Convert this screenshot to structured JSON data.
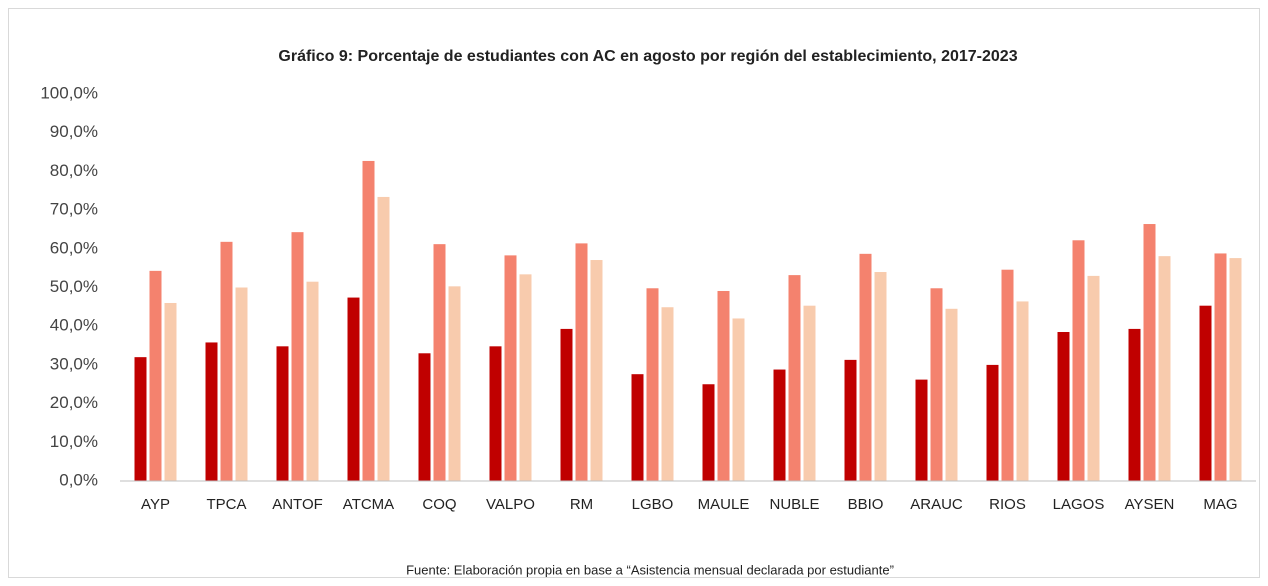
{
  "chart_data": {
    "type": "bar",
    "title": "Gráfico 9: Porcentaje de estudiantes con AC en agosto por región del establecimiento, 2017-2023",
    "source": "Fuente: Elaboración propia en base a “Asistencia mensual declarada por estudiante”",
    "categories": [
      "AYP",
      "TPCA",
      "ANTOF",
      "ATCMA",
      "COQ",
      "VALPO",
      "RM",
      "LGBO",
      "MAULE",
      "NUBLE",
      "BBIO",
      "ARAUC",
      "RIOS",
      "LAGOS",
      "AYSEN",
      "MAG"
    ],
    "series": [
      {
        "color": "#c00000",
        "values": [
          32.0,
          35.8,
          34.8,
          47.4,
          33.0,
          34.8,
          39.3,
          27.6,
          25.0,
          28.8,
          31.3,
          26.2,
          30.0,
          38.5,
          39.3,
          45.3
        ]
      },
      {
        "color": "#f4826e",
        "values": [
          54.3,
          61.8,
          64.3,
          82.7,
          61.2,
          58.3,
          61.4,
          49.8,
          49.1,
          53.2,
          58.7,
          49.8,
          54.6,
          62.2,
          66.4,
          58.8
        ]
      },
      {
        "color": "#f8cbad",
        "values": [
          46.0,
          50.0,
          51.5,
          73.4,
          50.3,
          53.4,
          57.1,
          44.9,
          42.0,
          45.3,
          54.0,
          44.5,
          46.4,
          53.0,
          58.1,
          57.6
        ]
      }
    ],
    "ylim": [
      0,
      100
    ],
    "yticks": [
      {
        "value": 0,
        "label": "0,0%"
      },
      {
        "value": 10,
        "label": "10,0%"
      },
      {
        "value": 20,
        "label": "20,0%"
      },
      {
        "value": 30,
        "label": "30,0%"
      },
      {
        "value": 40,
        "label": "40,0%"
      },
      {
        "value": 50,
        "label": "50,0%"
      },
      {
        "value": 60,
        "label": "60,0%"
      },
      {
        "value": 70,
        "label": "70,0%"
      },
      {
        "value": 80,
        "label": "80,0%"
      },
      {
        "value": 90,
        "label": "90,0%"
      },
      {
        "value": 100,
        "label": "100,0%"
      }
    ],
    "grid": false
  }
}
